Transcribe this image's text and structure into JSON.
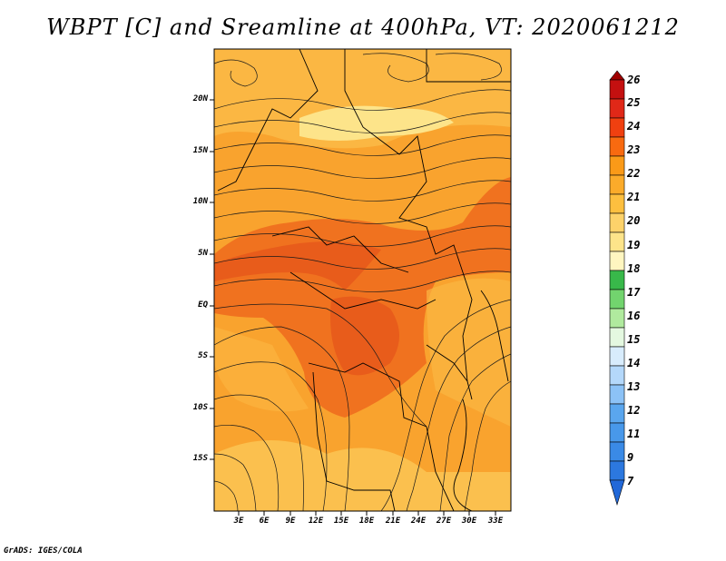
{
  "title": "WBPT [C] and Sreamline at 400hPa, VT: 2020061212",
  "credit": "GrADS: IGES/COLA",
  "lat_labels": [
    "20N",
    "15N",
    "10N",
    "5N",
    "EQ",
    "5S",
    "10S",
    "15S"
  ],
  "lon_labels": [
    "3E",
    "6E",
    "9E",
    "12E",
    "15E",
    "18E",
    "21E",
    "24E",
    "27E",
    "30E",
    "33E"
  ],
  "colorbar": {
    "labels": [
      "26",
      "25",
      "24",
      "23",
      "22",
      "21",
      "20",
      "19",
      "18",
      "17",
      "16",
      "15",
      "14",
      "13",
      "12",
      "11",
      "9",
      "7"
    ],
    "colors": [
      "#a00000",
      "#c41010",
      "#e02818",
      "#f04010",
      "#f86a10",
      "#fa9a18",
      "#fdbf3f",
      "#fde48a",
      "#fff6c0",
      "#38b84a",
      "#72d46e",
      "#b0ea9e",
      "#e4f8e0",
      "#b4d8fa",
      "#8cc2f6",
      "#5aa6ee",
      "#3a8ae6",
      "#2268d8"
    ]
  },
  "legend_colors": {
    "orange": "#f9a32e",
    "light": "#fbcb5a",
    "dark": "#ef6a1c",
    "darkest": "#e6561a"
  }
}
